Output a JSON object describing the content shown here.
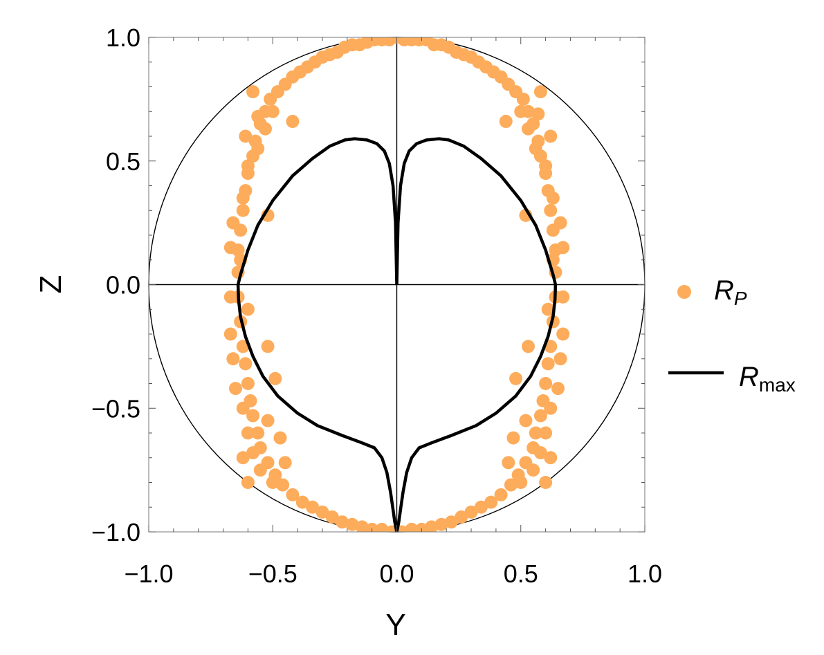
{
  "chart_data": {
    "type": "scatter",
    "xlabel": "Y",
    "ylabel": "Z",
    "xlim": [
      -1,
      1
    ],
    "ylim": [
      -1,
      1
    ],
    "xticks": [
      "−1.0",
      "−0.5",
      "0.0",
      "0.5",
      "1.0"
    ],
    "xtick_values": [
      -1,
      -0.5,
      0,
      0.5,
      1
    ],
    "yticks": [
      "−1.0",
      "−0.5",
      "0.0",
      "0.5",
      "1.0"
    ],
    "ytick_values": [
      -1,
      -0.5,
      0,
      0.5,
      1
    ],
    "grid": false,
    "legend_position": "right",
    "reference_circle": {
      "radius": 1.0,
      "color": "#000000"
    },
    "series": [
      {
        "name": "R_P",
        "label_main": "R",
        "label_sub": "P",
        "kind": "points",
        "color": "#fdac5b",
        "points": [
          [
            0.0,
            1.0
          ],
          [
            0.03,
            0.99
          ],
          [
            0.06,
            0.99
          ],
          [
            0.09,
            0.99
          ],
          [
            0.12,
            0.99
          ],
          [
            0.15,
            0.97
          ],
          [
            0.18,
            0.97
          ],
          [
            0.21,
            0.96
          ],
          [
            0.24,
            0.94
          ],
          [
            0.27,
            0.93
          ],
          [
            0.3,
            0.92
          ],
          [
            0.33,
            0.9
          ],
          [
            0.36,
            0.88
          ],
          [
            0.39,
            0.86
          ],
          [
            0.42,
            0.84
          ],
          [
            0.45,
            0.81
          ],
          [
            0.48,
            0.78
          ],
          [
            0.51,
            0.75
          ],
          [
            0.53,
            0.7
          ],
          [
            0.55,
            0.65
          ],
          [
            0.57,
            0.58
          ],
          [
            0.58,
            0.52
          ],
          [
            0.6,
            0.45
          ],
          [
            0.61,
            0.38
          ],
          [
            0.62,
            0.3
          ],
          [
            0.63,
            0.22
          ],
          [
            0.64,
            0.14
          ],
          [
            0.64,
            0.05
          ],
          [
            0.64,
            -0.05
          ],
          [
            0.63,
            -0.15
          ],
          [
            0.62,
            -0.25
          ],
          [
            0.61,
            -0.32
          ],
          [
            0.6,
            -0.4
          ],
          [
            0.59,
            -0.47
          ],
          [
            0.58,
            -0.53
          ],
          [
            0.56,
            -0.6
          ],
          [
            0.55,
            -0.66
          ],
          [
            0.52,
            -0.72
          ],
          [
            0.49,
            -0.77
          ],
          [
            0.46,
            -0.81
          ],
          [
            0.42,
            -0.85
          ],
          [
            0.38,
            -0.88
          ],
          [
            0.34,
            -0.9
          ],
          [
            0.3,
            -0.92
          ],
          [
            0.26,
            -0.94
          ],
          [
            0.22,
            -0.96
          ],
          [
            0.18,
            -0.97
          ],
          [
            0.14,
            -0.98
          ],
          [
            0.1,
            -0.99
          ],
          [
            0.06,
            -0.99
          ],
          [
            0.02,
            -1.0
          ],
          [
            -0.03,
            0.99
          ],
          [
            -0.06,
            0.99
          ],
          [
            -0.09,
            0.99
          ],
          [
            -0.12,
            0.98
          ],
          [
            -0.15,
            0.97
          ],
          [
            -0.18,
            0.97
          ],
          [
            -0.21,
            0.96
          ],
          [
            -0.24,
            0.94
          ],
          [
            -0.27,
            0.93
          ],
          [
            -0.3,
            0.92
          ],
          [
            -0.33,
            0.9
          ],
          [
            -0.36,
            0.88
          ],
          [
            -0.39,
            0.86
          ],
          [
            -0.42,
            0.84
          ],
          [
            -0.45,
            0.81
          ],
          [
            -0.48,
            0.78
          ],
          [
            -0.51,
            0.75
          ],
          [
            -0.53,
            0.7
          ],
          [
            -0.55,
            0.65
          ],
          [
            -0.57,
            0.58
          ],
          [
            -0.58,
            0.52
          ],
          [
            -0.6,
            0.45
          ],
          [
            -0.61,
            0.38
          ],
          [
            -0.62,
            0.3
          ],
          [
            -0.63,
            0.22
          ],
          [
            -0.64,
            0.14
          ],
          [
            -0.64,
            0.05
          ],
          [
            -0.64,
            -0.05
          ],
          [
            -0.63,
            -0.15
          ],
          [
            -0.62,
            -0.25
          ],
          [
            -0.61,
            -0.32
          ],
          [
            -0.6,
            -0.4
          ],
          [
            -0.59,
            -0.47
          ],
          [
            -0.58,
            -0.53
          ],
          [
            -0.56,
            -0.6
          ],
          [
            -0.55,
            -0.66
          ],
          [
            -0.52,
            -0.72
          ],
          [
            -0.49,
            -0.77
          ],
          [
            -0.46,
            -0.81
          ],
          [
            -0.42,
            -0.85
          ],
          [
            -0.38,
            -0.88
          ],
          [
            -0.34,
            -0.9
          ],
          [
            -0.3,
            -0.92
          ],
          [
            -0.26,
            -0.94
          ],
          [
            -0.22,
            -0.96
          ],
          [
            -0.18,
            -0.97
          ],
          [
            -0.14,
            -0.98
          ],
          [
            -0.1,
            -0.99
          ],
          [
            -0.06,
            -0.99
          ],
          [
            -0.02,
            -1.0
          ],
          [
            0.5,
            0.7
          ],
          [
            0.53,
            0.63
          ],
          [
            0.56,
            0.55
          ],
          [
            0.6,
            0.48
          ],
          [
            0.66,
            0.25
          ],
          [
            0.67,
            0.15
          ],
          [
            0.67,
            -0.05
          ],
          [
            0.67,
            -0.2
          ],
          [
            0.66,
            -0.3
          ],
          [
            0.65,
            -0.42
          ],
          [
            0.62,
            -0.5
          ],
          [
            0.6,
            -0.6
          ],
          [
            0.58,
            -0.68
          ],
          [
            0.55,
            -0.75
          ],
          [
            0.5,
            -0.8
          ],
          [
            0.44,
            0.66
          ],
          [
            0.52,
            0.28
          ],
          [
            0.53,
            -0.25
          ],
          [
            0.48,
            -0.38
          ],
          [
            0.52,
            -0.55
          ],
          [
            0.47,
            -0.62
          ],
          [
            0.45,
            -0.72
          ],
          [
            -0.5,
            0.7
          ],
          [
            -0.53,
            0.63
          ],
          [
            -0.56,
            0.55
          ],
          [
            -0.6,
            0.48
          ],
          [
            -0.66,
            0.25
          ],
          [
            -0.67,
            0.15
          ],
          [
            -0.67,
            -0.05
          ],
          [
            -0.67,
            -0.2
          ],
          [
            -0.66,
            -0.3
          ],
          [
            -0.65,
            -0.42
          ],
          [
            -0.62,
            -0.5
          ],
          [
            -0.6,
            -0.6
          ],
          [
            -0.58,
            -0.68
          ],
          [
            -0.55,
            -0.75
          ],
          [
            -0.5,
            -0.8
          ],
          [
            -0.42,
            0.66
          ],
          [
            -0.52,
            0.28
          ],
          [
            -0.52,
            -0.25
          ],
          [
            -0.49,
            -0.38
          ],
          [
            -0.52,
            -0.55
          ],
          [
            -0.47,
            -0.62
          ],
          [
            -0.45,
            -0.72
          ],
          [
            -0.58,
            0.78
          ],
          [
            0.58,
            0.78
          ],
          [
            -0.56,
            0.68
          ],
          [
            0.57,
            0.69
          ],
          [
            -0.61,
            0.6
          ],
          [
            0.62,
            0.6
          ],
          [
            -0.62,
            0.35
          ],
          [
            0.63,
            0.35
          ],
          [
            -0.63,
            0.1
          ],
          [
            0.63,
            0.1
          ],
          [
            -0.6,
            -0.1
          ],
          [
            0.61,
            -0.1
          ],
          [
            -0.62,
            -0.7
          ],
          [
            0.62,
            -0.7
          ],
          [
            -0.6,
            -0.8
          ],
          [
            0.6,
            -0.8
          ]
        ]
      },
      {
        "name": "R_max",
        "label_main": "R",
        "label_sub": "max",
        "kind": "line",
        "color": "#000000",
        "points": [
          [
            0.0,
            0.0
          ],
          [
            0.005,
            0.25
          ],
          [
            0.015,
            0.4
          ],
          [
            0.03,
            0.49
          ],
          [
            0.05,
            0.54
          ],
          [
            0.08,
            0.57
          ],
          [
            0.12,
            0.585
          ],
          [
            0.17,
            0.59
          ],
          [
            0.21,
            0.585
          ],
          [
            0.27,
            0.56
          ],
          [
            0.34,
            0.51
          ],
          [
            0.42,
            0.44
          ],
          [
            0.5,
            0.34
          ],
          [
            0.56,
            0.24
          ],
          [
            0.6,
            0.14
          ],
          [
            0.63,
            0.04
          ],
          [
            0.64,
            0.0
          ],
          [
            0.638,
            -0.06
          ],
          [
            0.63,
            -0.13
          ],
          [
            0.61,
            -0.21
          ],
          [
            0.58,
            -0.29
          ],
          [
            0.54,
            -0.37
          ],
          [
            0.48,
            -0.45
          ],
          [
            0.4,
            -0.52
          ],
          [
            0.32,
            -0.57
          ],
          [
            0.22,
            -0.61
          ],
          [
            0.14,
            -0.64
          ],
          [
            0.09,
            -0.66
          ],
          [
            0.06,
            -0.7
          ],
          [
            0.04,
            -0.76
          ],
          [
            0.025,
            -0.84
          ],
          [
            0.015,
            -0.91
          ],
          [
            0.008,
            -0.96
          ],
          [
            0.0,
            -1.0
          ],
          [
            -0.008,
            -0.96
          ],
          [
            -0.015,
            -0.91
          ],
          [
            -0.025,
            -0.84
          ],
          [
            -0.04,
            -0.76
          ],
          [
            -0.06,
            -0.7
          ],
          [
            -0.09,
            -0.66
          ],
          [
            -0.14,
            -0.64
          ],
          [
            -0.22,
            -0.61
          ],
          [
            -0.32,
            -0.57
          ],
          [
            -0.4,
            -0.52
          ],
          [
            -0.48,
            -0.45
          ],
          [
            -0.54,
            -0.37
          ],
          [
            -0.58,
            -0.29
          ],
          [
            -0.61,
            -0.21
          ],
          [
            -0.63,
            -0.13
          ],
          [
            -0.638,
            -0.06
          ],
          [
            -0.64,
            0.0
          ],
          [
            -0.63,
            0.04
          ],
          [
            -0.6,
            0.14
          ],
          [
            -0.56,
            0.24
          ],
          [
            -0.5,
            0.34
          ],
          [
            -0.42,
            0.44
          ],
          [
            -0.34,
            0.51
          ],
          [
            -0.27,
            0.56
          ],
          [
            -0.21,
            0.585
          ],
          [
            -0.17,
            0.59
          ],
          [
            -0.12,
            0.585
          ],
          [
            -0.08,
            0.57
          ],
          [
            -0.05,
            0.54
          ],
          [
            -0.03,
            0.49
          ],
          [
            -0.015,
            0.4
          ],
          [
            -0.005,
            0.25
          ],
          [
            0.0,
            0.0
          ]
        ]
      }
    ]
  }
}
